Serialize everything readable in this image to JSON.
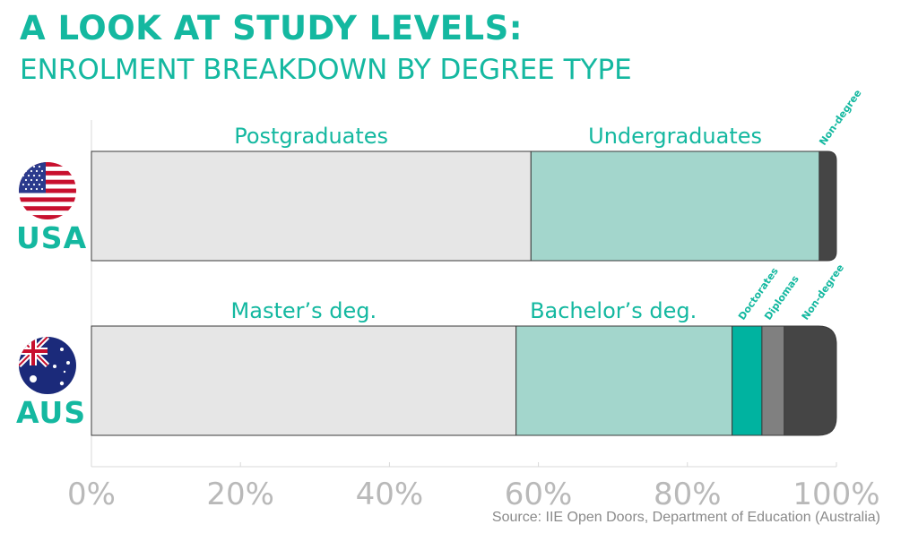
{
  "header": {
    "title": "A LOOK AT STUDY LEVELS:",
    "subtitle": "ENROLMENT BREAKDOWN BY DEGREE TYPE"
  },
  "countries": [
    {
      "label": "USA",
      "flag_icon": "usa-flag-icon"
    },
    {
      "label": "AUS",
      "flag_icon": "australia-flag-icon"
    }
  ],
  "source": "Source: IIE Open Doors, Department of Education (Australia)",
  "colors": {
    "accent": "#14b8a0",
    "postgrad": "#e6e6e6",
    "undergrad": "#a3d6cc",
    "doctorates": "#00b3a0",
    "diplomas": "#808080",
    "nondegree": "#454545",
    "axis_text": "#b9b9b9"
  },
  "chart_data": {
    "type": "bar",
    "orientation": "horizontal",
    "stacked": true,
    "title": "",
    "xlabel": "",
    "ylabel": "",
    "xlim": [
      0,
      100
    ],
    "x_ticks": [
      0,
      20,
      40,
      60,
      80,
      100
    ],
    "x_tick_labels": [
      "0%",
      "20%",
      "40%",
      "60%",
      "80%",
      "100%"
    ],
    "grid": false,
    "legend": "none",
    "rows": [
      {
        "category": "USA",
        "segments": [
          {
            "label": "Postgraduates",
            "value": 59,
            "label_style": "large"
          },
          {
            "label": "Undergraduates",
            "value": 38.7,
            "label_style": "large"
          },
          {
            "label": "Non-degree",
            "value": 2.3,
            "label_style": "small"
          }
        ]
      },
      {
        "category": "AUS",
        "segments": [
          {
            "label": "Master’s deg.",
            "value": 57,
            "label_style": "large"
          },
          {
            "label": "Bachelor’s deg.",
            "value": 29,
            "label_style": "large"
          },
          {
            "label": "Doctorates",
            "value": 4,
            "label_style": "small"
          },
          {
            "label": "Diplomas",
            "value": 3,
            "label_style": "small"
          },
          {
            "label": "Non-degree",
            "value": 7,
            "label_style": "small"
          }
        ]
      }
    ]
  }
}
